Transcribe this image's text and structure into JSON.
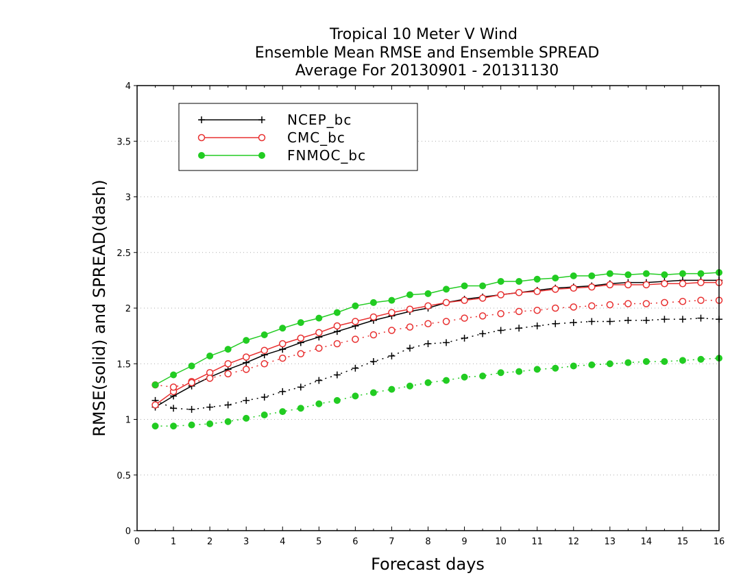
{
  "chart_data": {
    "type": "line",
    "title": [
      "Tropical 10 Meter V Wind",
      "Ensemble Mean RMSE and Ensemble SPREAD",
      "Average For 20130901 - 20131130"
    ],
    "xlabel": "Forecast days",
    "ylabel": "RMSE(solid) and SPREAD(dash)",
    "xlim": [
      0,
      16
    ],
    "ylim": [
      0,
      4
    ],
    "xticks": [
      "0",
      "1",
      "2",
      "3",
      "4",
      "5",
      "6",
      "7",
      "8",
      "9",
      "10",
      "11",
      "12",
      "13",
      "14",
      "15",
      "16"
    ],
    "yticks": [
      "0",
      "0.5",
      "1",
      "1.5",
      "2",
      "2.5",
      "3",
      "3.5",
      "4"
    ],
    "grid": "horizontal dotted",
    "legend_position": "top-left",
    "x": [
      0.5,
      1,
      1.5,
      2,
      2.5,
      3,
      3.5,
      4,
      4.5,
      5,
      5.5,
      6,
      6.5,
      7,
      7.5,
      8,
      8.5,
      9,
      9.5,
      10,
      10.5,
      11,
      11.5,
      12,
      12.5,
      13,
      13.5,
      14,
      14.5,
      15,
      15.5,
      16
    ],
    "series": [
      {
        "name": "NCEP_bc",
        "color": "#000000",
        "marker": "plus",
        "rmse": [
          1.11,
          1.21,
          1.3,
          1.38,
          1.45,
          1.51,
          1.58,
          1.63,
          1.69,
          1.74,
          1.79,
          1.84,
          1.89,
          1.93,
          1.97,
          2.0,
          2.05,
          2.08,
          2.1,
          2.12,
          2.14,
          2.16,
          2.18,
          2.19,
          2.2,
          2.22,
          2.23,
          2.23,
          2.24,
          2.25,
          2.25,
          2.25
        ],
        "spread": [
          1.17,
          1.1,
          1.09,
          1.11,
          1.13,
          1.17,
          1.2,
          1.25,
          1.29,
          1.35,
          1.4,
          1.46,
          1.52,
          1.57,
          1.64,
          1.68,
          1.69,
          1.73,
          1.77,
          1.8,
          1.82,
          1.84,
          1.86,
          1.87,
          1.88,
          1.88,
          1.89,
          1.89,
          1.9,
          1.9,
          1.91,
          1.9
        ]
      },
      {
        "name": "CMC_bc",
        "color": "#e83030",
        "marker": "open-circle",
        "rmse": [
          1.13,
          1.25,
          1.34,
          1.42,
          1.5,
          1.56,
          1.62,
          1.68,
          1.73,
          1.78,
          1.84,
          1.88,
          1.92,
          1.96,
          1.99,
          2.02,
          2.05,
          2.07,
          2.09,
          2.12,
          2.14,
          2.15,
          2.17,
          2.18,
          2.19,
          2.21,
          2.21,
          2.21,
          2.22,
          2.22,
          2.23,
          2.23
        ],
        "spread": [
          1.31,
          1.29,
          1.33,
          1.37,
          1.41,
          1.45,
          1.5,
          1.55,
          1.59,
          1.64,
          1.68,
          1.72,
          1.76,
          1.8,
          1.83,
          1.86,
          1.88,
          1.91,
          1.93,
          1.95,
          1.97,
          1.98,
          2.0,
          2.01,
          2.02,
          2.03,
          2.04,
          2.04,
          2.05,
          2.06,
          2.07,
          2.07
        ]
      },
      {
        "name": "FNMOC_bc",
        "color": "#22cc22",
        "marker": "filled-circle",
        "rmse": [
          1.31,
          1.4,
          1.48,
          1.57,
          1.63,
          1.71,
          1.76,
          1.82,
          1.87,
          1.91,
          1.96,
          2.02,
          2.05,
          2.07,
          2.12,
          2.13,
          2.17,
          2.2,
          2.2,
          2.24,
          2.24,
          2.26,
          2.27,
          2.29,
          2.29,
          2.31,
          2.3,
          2.31,
          2.3,
          2.31,
          2.31,
          2.32
        ],
        "spread": [
          0.94,
          0.94,
          0.95,
          0.96,
          0.98,
          1.01,
          1.04,
          1.07,
          1.1,
          1.14,
          1.17,
          1.21,
          1.24,
          1.27,
          1.3,
          1.33,
          1.35,
          1.38,
          1.39,
          1.42,
          1.43,
          1.45,
          1.46,
          1.48,
          1.49,
          1.5,
          1.51,
          1.52,
          1.52,
          1.53,
          1.54,
          1.55
        ]
      }
    ]
  }
}
